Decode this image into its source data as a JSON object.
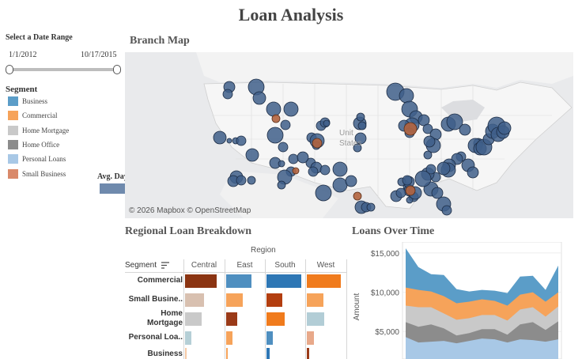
{
  "title": "Loan Analysis",
  "date_filter": {
    "title": "Select a Date Range",
    "start": "1/1/2012",
    "end": "10/17/2015",
    "start_fraction": 0.0,
    "end_fraction": 1.0
  },
  "segment_legend": {
    "title": "Segment",
    "items": [
      {
        "label": "Business",
        "color": "#5b9dc8"
      },
      {
        "label": "Commercial",
        "color": "#f6a35a"
      },
      {
        "label": "Home Mortgage",
        "color": "#c9c9c9"
      },
      {
        "label": "Home Office",
        "color": "#8c8c8c"
      },
      {
        "label": "Personal Loans",
        "color": "#a8c8e6"
      },
      {
        "label": "Small Business",
        "color": "#d9896a"
      }
    ]
  },
  "overdue": {
    "label": "Avg. Days Overdue",
    "left_color": "#6f8aad",
    "right_color": "#b57e68"
  },
  "branch_map": {
    "title": "Branch Map",
    "country_label_1": "Unit",
    "country_label_2": "States",
    "credit": "© 2026 Mapbox  © OpenStreetMap"
  },
  "regional": {
    "title": "Regional Loan Breakdown",
    "column_group": "Region",
    "row_header": "Segment",
    "filter_icon": "sort-icon",
    "columns": [
      "Central",
      "East",
      "South",
      "West"
    ],
    "rows": [
      "Commercial",
      "Small Busine..",
      "Home\nMortgage",
      "Personal Loa..",
      "Business"
    ],
    "values": [
      [
        0.88,
        0.72,
        0.98,
        0.94
      ],
      [
        0.52,
        0.46,
        0.44,
        0.46
      ],
      [
        0.45,
        0.32,
        0.5,
        0.48
      ],
      [
        0.18,
        0.18,
        0.18,
        0.2
      ],
      [
        0.04,
        0.05,
        0.08,
        0.06
      ]
    ],
    "colors": [
      [
        "#8b3412",
        "#4f8fc0",
        "#2e77b5",
        "#f07b1d"
      ],
      [
        "#d8c0b0",
        "#f6a35a",
        "#b33e0f",
        "#f6a35a"
      ],
      [
        "#c9c9c9",
        "#9a3a18",
        "#f07b1d",
        "#b2cdd6"
      ],
      [
        "#b5cfd6",
        "#f6a35a",
        "#4f8fc0",
        "#e8a98a"
      ],
      [
        "#f6c9a6",
        "#f6a35a",
        "#2e77b5",
        "#9a3a18"
      ]
    ]
  },
  "loans_over_time": {
    "title": "Loans Over Time",
    "ylabel": "Amount",
    "tick_labels": [
      "$15,000",
      "$10,000",
      "$5,000"
    ]
  },
  "chart_data": {
    "type": "area",
    "title": "Loans Over Time",
    "ylabel": "Amount",
    "ylim": [
      1500,
      16000
    ],
    "x": [
      1,
      2,
      3,
      4,
      5,
      6,
      7,
      8,
      9,
      10,
      11,
      12,
      13
    ],
    "series": [
      {
        "name": "Business",
        "color": "#5b9dc8",
        "values": [
          15600,
          13200,
          12300,
          12200,
          10400,
          10100,
          10300,
          10200,
          9900,
          12000,
          12100,
          10300,
          13400
        ]
      },
      {
        "name": "Commercial",
        "color": "#f6a35a",
        "values": [
          10600,
          10300,
          10100,
          9500,
          8600,
          8800,
          9100,
          8900,
          8300,
          9700,
          10000,
          8800,
          10000
        ]
      },
      {
        "name": "Home Mortgage",
        "color": "#c9c9c9",
        "values": [
          8300,
          8100,
          8100,
          7300,
          6500,
          6700,
          7100,
          7100,
          6400,
          7800,
          8100,
          6900,
          8200
        ]
      },
      {
        "name": "Home Office",
        "color": "#8c8c8c",
        "values": [
          6200,
          5600,
          5900,
          5400,
          4500,
          4800,
          5300,
          5300,
          4600,
          5900,
          6200,
          5200,
          6300
        ]
      },
      {
        "name": "Personal Loans",
        "color": "#a8c8e6",
        "values": [
          4300,
          3600,
          3700,
          3800,
          3500,
          3800,
          4100,
          4000,
          3600,
          4000,
          3900,
          3700,
          4000
        ]
      }
    ]
  }
}
